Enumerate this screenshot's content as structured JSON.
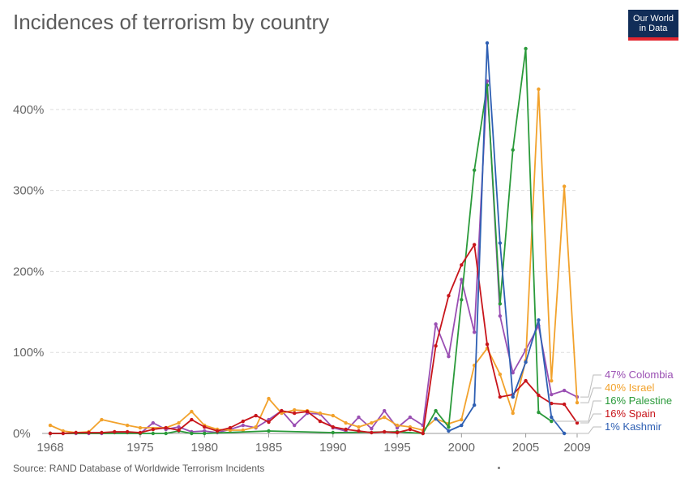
{
  "title": "Incidences of terrorism by country",
  "logo": {
    "line1": "Our World",
    "line2": "in Data"
  },
  "source": "Source: RAND Database of Worldwide Terrorism Incidents",
  "chart_data": {
    "type": "line",
    "title": "Incidences of terrorism by country",
    "xlabel": "",
    "ylabel": "",
    "xlim": [
      1968,
      2009
    ],
    "ylim": [
      0,
      480
    ],
    "x_ticks": [
      {
        "value": 1968,
        "label": "1968"
      },
      {
        "value": 1975,
        "label": "1975"
      },
      {
        "value": 1980,
        "label": "1980"
      },
      {
        "value": 1985,
        "label": "1985"
      },
      {
        "value": 1990,
        "label": "1990"
      },
      {
        "value": 1995,
        "label": "1995"
      },
      {
        "value": 2000,
        "label": "2000"
      },
      {
        "value": 2005,
        "label": "2005"
      },
      {
        "value": 2009,
        "label": "2009"
      }
    ],
    "y_ticks": [
      {
        "value": 0,
        "label": "0%"
      },
      {
        "value": 100,
        "label": "100%"
      },
      {
        "value": 200,
        "label": "200%"
      },
      {
        "value": 300,
        "label": "300%"
      },
      {
        "value": 400,
        "label": "400%"
      }
    ],
    "grid": true,
    "legend": "right",
    "series": [
      {
        "name": "Colombia",
        "legend_label": "47% Colombia",
        "color": "#9a4fb3",
        "points": [
          [
            1968,
            0
          ],
          [
            1969,
            0
          ],
          [
            1970,
            0
          ],
          [
            1971,
            0
          ],
          [
            1972,
            0
          ],
          [
            1973,
            1
          ],
          [
            1974,
            1
          ],
          [
            1975,
            0
          ],
          [
            1976,
            13
          ],
          [
            1977,
            5
          ],
          [
            1978,
            8
          ],
          [
            1979,
            2
          ],
          [
            1980,
            3
          ],
          [
            1981,
            1
          ],
          [
            1982,
            5
          ],
          [
            1983,
            10
          ],
          [
            1984,
            7
          ],
          [
            1985,
            17
          ],
          [
            1986,
            28
          ],
          [
            1987,
            10
          ],
          [
            1988,
            25
          ],
          [
            1989,
            24
          ],
          [
            1990,
            7
          ],
          [
            1991,
            3
          ],
          [
            1992,
            20
          ],
          [
            1993,
            6
          ],
          [
            1994,
            28
          ],
          [
            1995,
            7
          ],
          [
            1996,
            20
          ],
          [
            1997,
            10
          ],
          [
            1998,
            135
          ],
          [
            1999,
            95
          ],
          [
            2000,
            190
          ],
          [
            2001,
            125
          ],
          [
            2002,
            435
          ],
          [
            2003,
            145
          ],
          [
            2004,
            75
          ],
          [
            2005,
            103
          ],
          [
            2006,
            133
          ],
          [
            2007,
            48
          ],
          [
            2008,
            53
          ],
          [
            2009,
            45
          ]
        ]
      },
      {
        "name": "Israel",
        "legend_label": "40% Israel",
        "color": "#f2a22c",
        "points": [
          [
            1968,
            10
          ],
          [
            1969,
            3
          ],
          [
            1970,
            1
          ],
          [
            1971,
            2
          ],
          [
            1972,
            17
          ],
          [
            1974,
            10
          ],
          [
            1975,
            7
          ],
          [
            1977,
            7
          ],
          [
            1978,
            13
          ],
          [
            1979,
            27
          ],
          [
            1980,
            10
          ],
          [
            1981,
            5
          ],
          [
            1982,
            4
          ],
          [
            1983,
            4
          ],
          [
            1984,
            8
          ],
          [
            1985,
            43
          ],
          [
            1986,
            25
          ],
          [
            1987,
            29
          ],
          [
            1988,
            28
          ],
          [
            1989,
            25
          ],
          [
            1990,
            22
          ],
          [
            1991,
            13
          ],
          [
            1992,
            8
          ],
          [
            1993,
            13
          ],
          [
            1994,
            20
          ],
          [
            1995,
            10
          ],
          [
            1996,
            8
          ],
          [
            1997,
            4
          ],
          [
            1998,
            18
          ],
          [
            1999,
            12
          ],
          [
            2000,
            17
          ],
          [
            2001,
            84
          ],
          [
            2002,
            105
          ],
          [
            2003,
            73
          ],
          [
            2004,
            25
          ],
          [
            2005,
            90
          ],
          [
            2006,
            425
          ],
          [
            2007,
            65
          ],
          [
            2008,
            305
          ],
          [
            2009,
            38
          ]
        ]
      },
      {
        "name": "Palestine",
        "legend_label": "16% Palestine",
        "color": "#2a9a3a",
        "points": [
          [
            1968,
            0
          ],
          [
            1975,
            0
          ],
          [
            1976,
            0
          ],
          [
            1977,
            0
          ],
          [
            1978,
            3
          ],
          [
            1979,
            0
          ],
          [
            1980,
            0
          ],
          [
            1985,
            3
          ],
          [
            1990,
            1
          ],
          [
            1995,
            2
          ],
          [
            1997,
            0
          ],
          [
            1998,
            28
          ],
          [
            1999,
            8
          ],
          [
            2000,
            165
          ],
          [
            2001,
            325
          ],
          [
            2002,
            430
          ],
          [
            2003,
            160
          ],
          [
            2004,
            350
          ],
          [
            2005,
            475
          ],
          [
            2006,
            26
          ],
          [
            2007,
            15
          ]
        ]
      },
      {
        "name": "Spain",
        "legend_label": "16% Spain",
        "color": "#c8151b",
        "points": [
          [
            1968,
            0
          ],
          [
            1969,
            0
          ],
          [
            1970,
            1
          ],
          [
            1971,
            1
          ],
          [
            1972,
            1
          ],
          [
            1973,
            2
          ],
          [
            1974,
            2
          ],
          [
            1975,
            1
          ],
          [
            1976,
            5
          ],
          [
            1977,
            7
          ],
          [
            1978,
            4
          ],
          [
            1979,
            17
          ],
          [
            1980,
            8
          ],
          [
            1981,
            3
          ],
          [
            1982,
            7
          ],
          [
            1983,
            15
          ],
          [
            1984,
            22
          ],
          [
            1985,
            14
          ],
          [
            1986,
            28
          ],
          [
            1987,
            25
          ],
          [
            1988,
            27
          ],
          [
            1989,
            15
          ],
          [
            1990,
            8
          ],
          [
            1991,
            5
          ],
          [
            1992,
            3
          ],
          [
            1993,
            1
          ],
          [
            1994,
            2
          ],
          [
            1995,
            1
          ],
          [
            1996,
            5
          ],
          [
            1997,
            0
          ],
          [
            1998,
            108
          ],
          [
            1999,
            170
          ],
          [
            2000,
            208
          ],
          [
            2001,
            233
          ],
          [
            2002,
            110
          ],
          [
            2003,
            45
          ],
          [
            2004,
            48
          ],
          [
            2005,
            65
          ],
          [
            2006,
            47
          ],
          [
            2007,
            37
          ],
          [
            2008,
            36
          ],
          [
            2009,
            13
          ]
        ]
      },
      {
        "name": "Kashmir",
        "legend_label": "1% Kashmir",
        "color": "#2e5fb3",
        "points": [
          [
            1998,
            18
          ],
          [
            1999,
            3
          ],
          [
            2000,
            10
          ],
          [
            2001,
            35
          ],
          [
            2002,
            482
          ],
          [
            2003,
            235
          ],
          [
            2004,
            45
          ],
          [
            2005,
            88
          ],
          [
            2006,
            140
          ],
          [
            2007,
            20
          ],
          [
            2008,
            0
          ]
        ]
      }
    ]
  }
}
